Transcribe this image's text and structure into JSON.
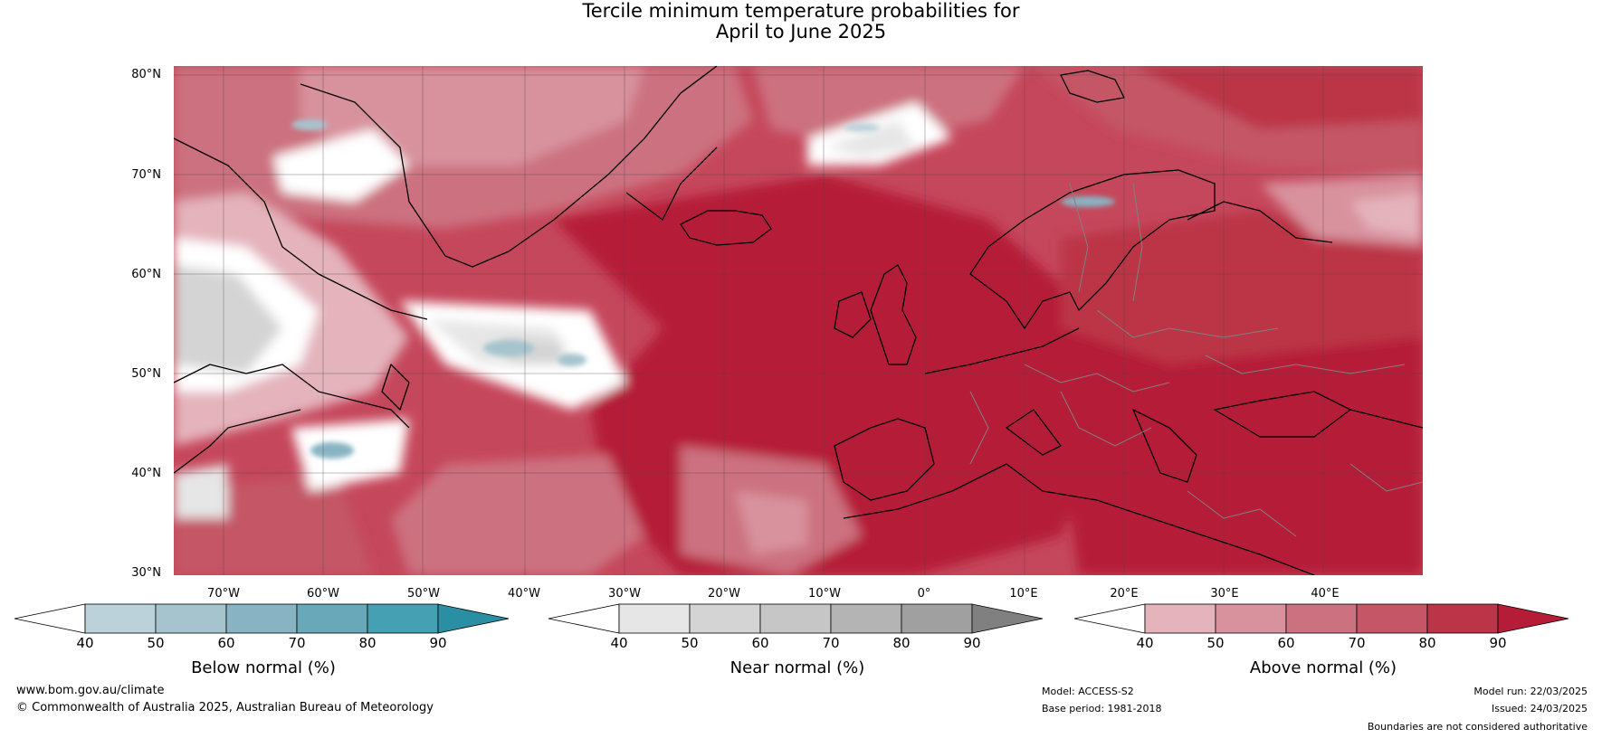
{
  "title": {
    "line1": "Tercile minimum temperature probabilities for",
    "line2": "April to June 2025"
  },
  "map": {
    "lat_labels": [
      "80°N",
      "70°N",
      "60°N",
      "50°N",
      "40°N",
      "30°N"
    ],
    "lon_labels": [
      "70°W",
      "60°W",
      "50°W",
      "40°W",
      "30°W",
      "20°W",
      "10°W",
      "0°",
      "10°E",
      "20°E",
      "30°E",
      "40°E"
    ],
    "land_outline_color": "#000000",
    "border_color": "#808080"
  },
  "colorbars": [
    {
      "label": "Below normal (%)",
      "ticks": [
        "40",
        "50",
        "60",
        "70",
        "80",
        "90"
      ],
      "colors": [
        "#ffffff",
        "#bcd2da",
        "#a5c4cd",
        "#88b3c2",
        "#68a8b9",
        "#46a0b3",
        "#2b8fa3"
      ]
    },
    {
      "label": "Near normal (%)",
      "ticks": [
        "40",
        "50",
        "60",
        "70",
        "80",
        "90"
      ],
      "colors": [
        "#ffffff",
        "#e6e6e6",
        "#d4d4d4",
        "#c6c6c6",
        "#b4b4b4",
        "#a0a0a0",
        "#808080"
      ]
    },
    {
      "label": "Above normal (%)",
      "ticks": [
        "40",
        "50",
        "60",
        "70",
        "80",
        "90"
      ],
      "colors": [
        "#ffffff",
        "#e4b3bc",
        "#d8929e",
        "#cc717f",
        "#c45666",
        "#bb3447",
        "#b51c37"
      ]
    }
  ],
  "footer": {
    "website": "www.bom.gov.au/climate",
    "copyright": "© Commonwealth of Australia 2025, Australian Bureau of Meteorology",
    "model": "Model: ACCESS-S2",
    "base_period": "Base period: 1981-2018",
    "model_run": "Model run: 22/03/2025",
    "issued": "Issued: 24/03/2025",
    "disclaimer": "Boundaries are not considered authoritative"
  }
}
